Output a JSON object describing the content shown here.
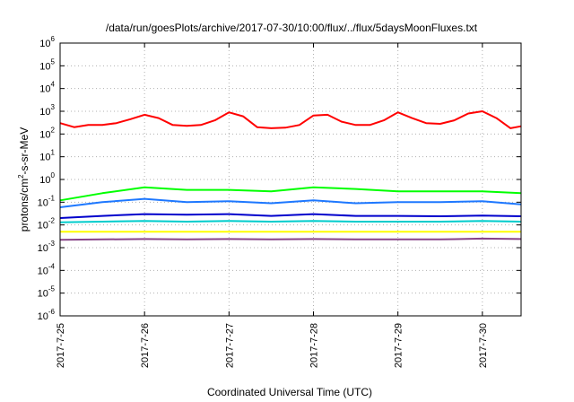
{
  "chart_data": {
    "type": "line",
    "title": "/data/run/goesPlots/archive/2017-07-30/10:00/flux/../flux/5daysMoonFluxes.txt",
    "xlabel": "Coordinated Universal Time (UTC)",
    "ylabel_parts": {
      "base": "protons/cm",
      "sup": "2",
      "rest": "-s-sr-MeV"
    },
    "y_scale": "log",
    "ylim": [
      1e-06,
      1000000.0
    ],
    "xlim": [
      "2017-07-25",
      "2017-07-30 11:00"
    ],
    "grid": true,
    "x_ticks": [
      "2017-7-25",
      "2017-7-26",
      "2017-7-27",
      "2017-7-28",
      "2017-7-29",
      "2017-7-30"
    ],
    "y_ticks": [
      {
        "base": "10",
        "exp": "-6"
      },
      {
        "base": "10",
        "exp": "-5"
      },
      {
        "base": "10",
        "exp": "-4"
      },
      {
        "base": "10",
        "exp": "-3"
      },
      {
        "base": "10",
        "exp": "-2"
      },
      {
        "base": "10",
        "exp": "-1"
      },
      {
        "base": "10",
        "exp": "0"
      },
      {
        "base": "10",
        "exp": "1"
      },
      {
        "base": "10",
        "exp": "2"
      },
      {
        "base": "10",
        "exp": "3"
      },
      {
        "base": "10",
        "exp": "4"
      },
      {
        "base": "10",
        "exp": "5"
      },
      {
        "base": "10",
        "exp": "6"
      }
    ],
    "series": [
      {
        "color": "#ff0000",
        "x": [
          "2017-07-25 00:00",
          "2017-07-25 04:00",
          "2017-07-25 08:00",
          "2017-07-25 12:00",
          "2017-07-25 16:00",
          "2017-07-25 20:00",
          "2017-07-26 00:00",
          "2017-07-26 04:00",
          "2017-07-26 08:00",
          "2017-07-26 12:00",
          "2017-07-26 16:00",
          "2017-07-26 20:00",
          "2017-07-27 00:00",
          "2017-07-27 04:00",
          "2017-07-27 08:00",
          "2017-07-27 12:00",
          "2017-07-27 16:00",
          "2017-07-27 20:00",
          "2017-07-28 00:00",
          "2017-07-28 04:00",
          "2017-07-28 08:00",
          "2017-07-28 12:00",
          "2017-07-28 16:00",
          "2017-07-28 20:00",
          "2017-07-29 00:00",
          "2017-07-29 04:00",
          "2017-07-29 08:00",
          "2017-07-29 12:00",
          "2017-07-29 16:00",
          "2017-07-29 20:00",
          "2017-07-30 00:00",
          "2017-07-30 04:00",
          "2017-07-30 08:00",
          "2017-07-30 11:00"
        ],
        "y": [
          300,
          200,
          250,
          250,
          300,
          450,
          700,
          500,
          250,
          230,
          250,
          400,
          900,
          600,
          200,
          180,
          190,
          250,
          650,
          700,
          350,
          250,
          250,
          400,
          900,
          500,
          300,
          280,
          400,
          800,
          1000,
          500,
          180,
          220
        ]
      },
      {
        "color": "#00ff00",
        "x": [
          "2017-07-25 00:00",
          "2017-07-25 12:00",
          "2017-07-26 00:00",
          "2017-07-26 12:00",
          "2017-07-27 00:00",
          "2017-07-27 12:00",
          "2017-07-28 00:00",
          "2017-07-28 12:00",
          "2017-07-29 00:00",
          "2017-07-29 12:00",
          "2017-07-30 00:00",
          "2017-07-30 11:00"
        ],
        "y": [
          0.12,
          0.25,
          0.45,
          0.35,
          0.35,
          0.3,
          0.45,
          0.38,
          0.3,
          0.3,
          0.3,
          0.25
        ]
      },
      {
        "color": "#1e78ff",
        "x": [
          "2017-07-25 00:00",
          "2017-07-25 12:00",
          "2017-07-26 00:00",
          "2017-07-26 12:00",
          "2017-07-27 00:00",
          "2017-07-27 12:00",
          "2017-07-28 00:00",
          "2017-07-28 12:00",
          "2017-07-29 00:00",
          "2017-07-29 12:00",
          "2017-07-30 00:00",
          "2017-07-30 11:00"
        ],
        "y": [
          0.06,
          0.1,
          0.14,
          0.1,
          0.11,
          0.09,
          0.12,
          0.09,
          0.1,
          0.1,
          0.11,
          0.08
        ]
      },
      {
        "color": "#0000cc",
        "x": [
          "2017-07-25 00:00",
          "2017-07-25 12:00",
          "2017-07-26 00:00",
          "2017-07-26 12:00",
          "2017-07-27 00:00",
          "2017-07-27 12:00",
          "2017-07-28 00:00",
          "2017-07-28 12:00",
          "2017-07-29 00:00",
          "2017-07-29 12:00",
          "2017-07-30 00:00",
          "2017-07-30 11:00"
        ],
        "y": [
          0.02,
          0.025,
          0.03,
          0.028,
          0.03,
          0.025,
          0.03,
          0.025,
          0.025,
          0.024,
          0.026,
          0.024
        ]
      },
      {
        "color": "#00cccc",
        "x": [
          "2017-07-25 00:00",
          "2017-07-25 12:00",
          "2017-07-26 00:00",
          "2017-07-26 12:00",
          "2017-07-27 00:00",
          "2017-07-27 12:00",
          "2017-07-28 00:00",
          "2017-07-28 12:00",
          "2017-07-29 00:00",
          "2017-07-29 12:00",
          "2017-07-30 00:00",
          "2017-07-30 11:00"
        ],
        "y": [
          0.013,
          0.014,
          0.015,
          0.014,
          0.015,
          0.014,
          0.015,
          0.014,
          0.014,
          0.014,
          0.015,
          0.014
        ]
      },
      {
        "color": "#ffff00",
        "x": [
          "2017-07-25 00:00",
          "2017-07-25 12:00",
          "2017-07-26 00:00",
          "2017-07-26 12:00",
          "2017-07-27 00:00",
          "2017-07-27 12:00",
          "2017-07-28 00:00",
          "2017-07-28 12:00",
          "2017-07-29 00:00",
          "2017-07-29 12:00",
          "2017-07-30 00:00",
          "2017-07-30 11:00"
        ],
        "y": [
          0.005,
          0.005,
          0.005,
          0.005,
          0.005,
          0.005,
          0.005,
          0.005,
          0.005,
          0.005,
          0.005,
          0.005
        ]
      },
      {
        "color": "#884488",
        "x": [
          "2017-07-25 00:00",
          "2017-07-25 12:00",
          "2017-07-26 00:00",
          "2017-07-26 12:00",
          "2017-07-27 00:00",
          "2017-07-27 12:00",
          "2017-07-28 00:00",
          "2017-07-28 12:00",
          "2017-07-29 00:00",
          "2017-07-29 12:00",
          "2017-07-30 00:00",
          "2017-07-30 11:00"
        ],
        "y": [
          0.0022,
          0.0023,
          0.0024,
          0.0023,
          0.0024,
          0.0023,
          0.0024,
          0.0023,
          0.0023,
          0.0023,
          0.0025,
          0.0024
        ]
      }
    ]
  }
}
